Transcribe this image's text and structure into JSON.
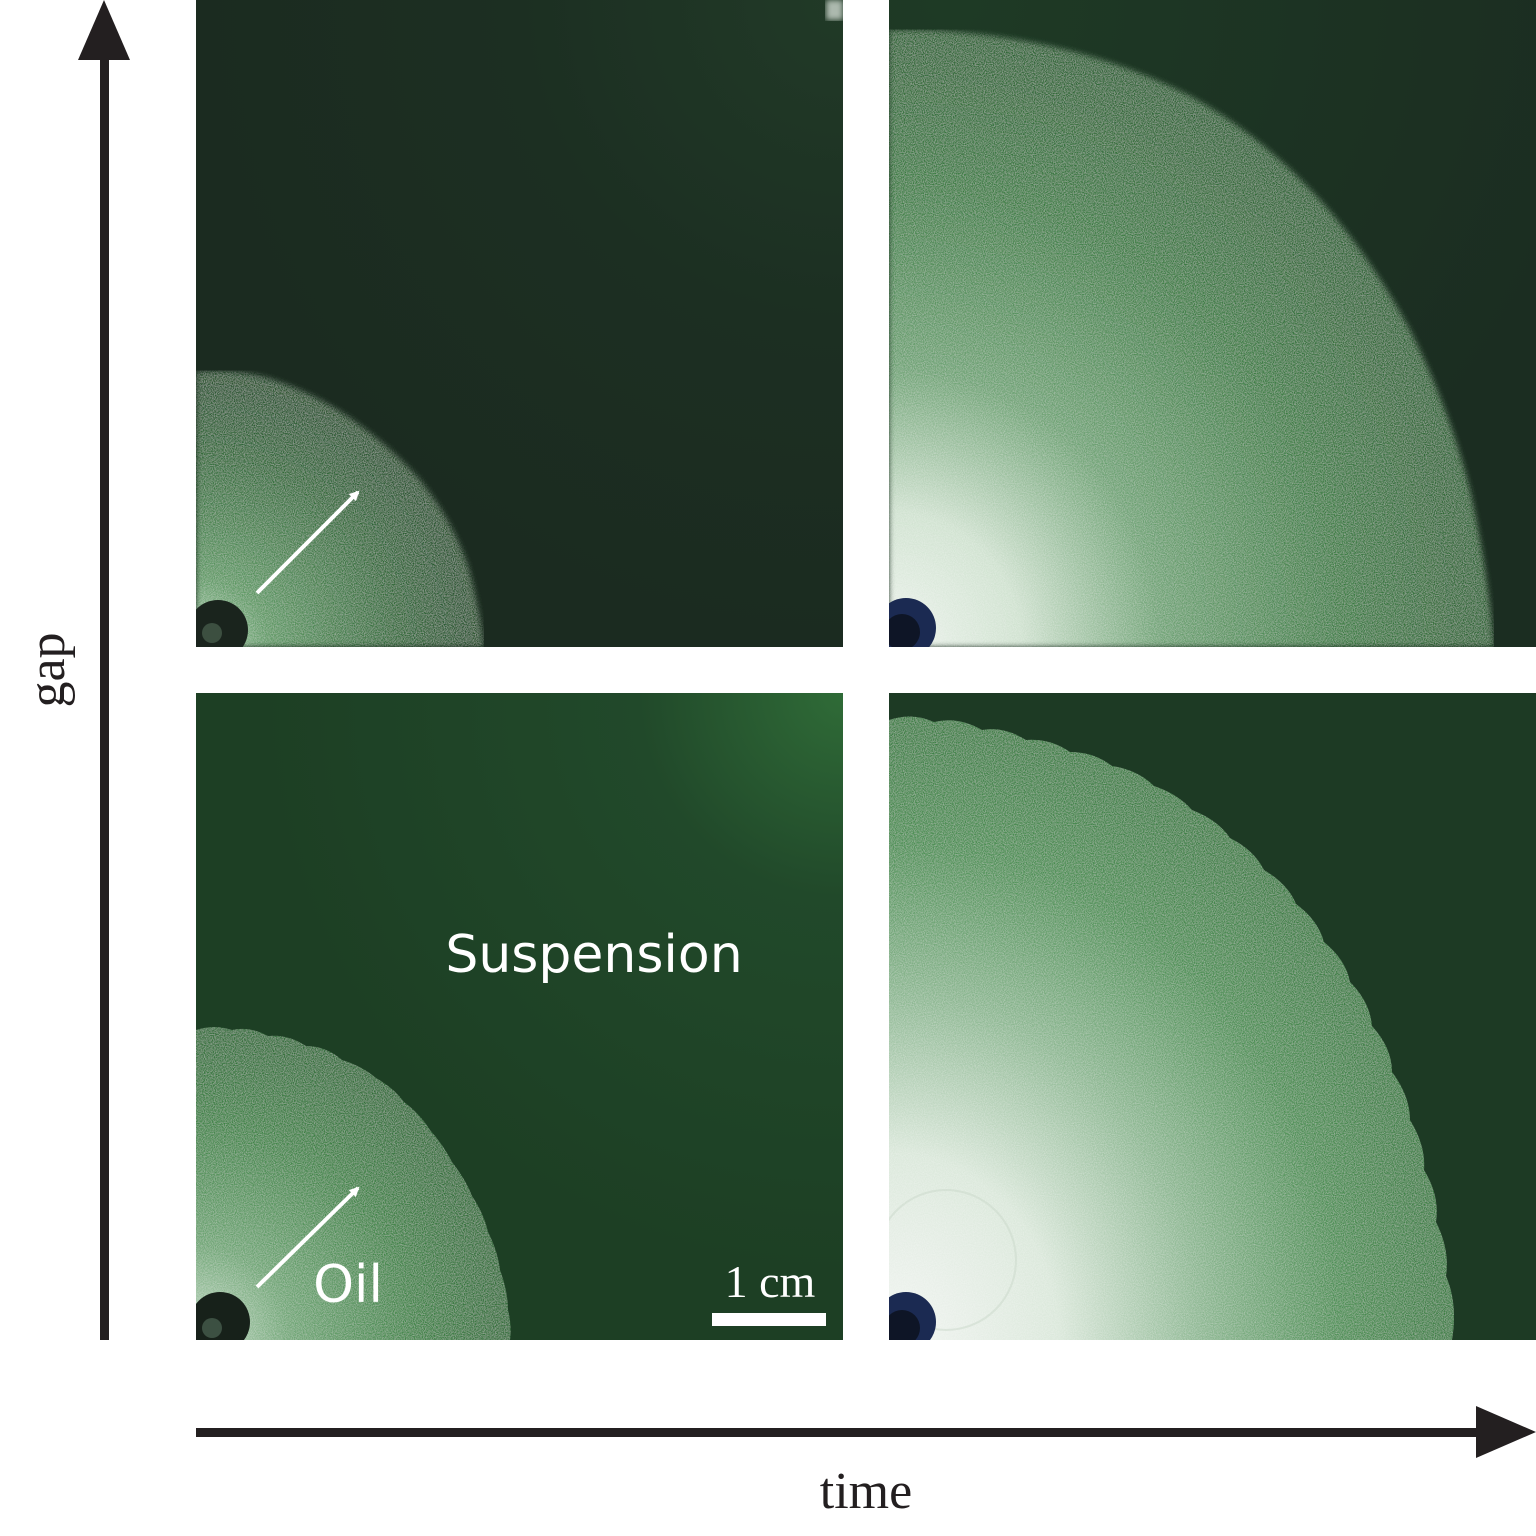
{
  "axes": {
    "vertical_label": "gap",
    "horizontal_label": "time"
  },
  "panels": {
    "top_left": {},
    "top_right": {},
    "bottom_left": {
      "suspension_label": "Suspension",
      "oil_label": "Oil",
      "scale_bar_label": "1 cm"
    },
    "bottom_right": {}
  },
  "colors": {
    "background": "#ffffff",
    "axis": "#231f20",
    "suspension_dark": "#1c2c20",
    "suspension_green": "#1f4726",
    "oil_green": "#3f8a48",
    "oil_bright": "#d6e6d6"
  }
}
